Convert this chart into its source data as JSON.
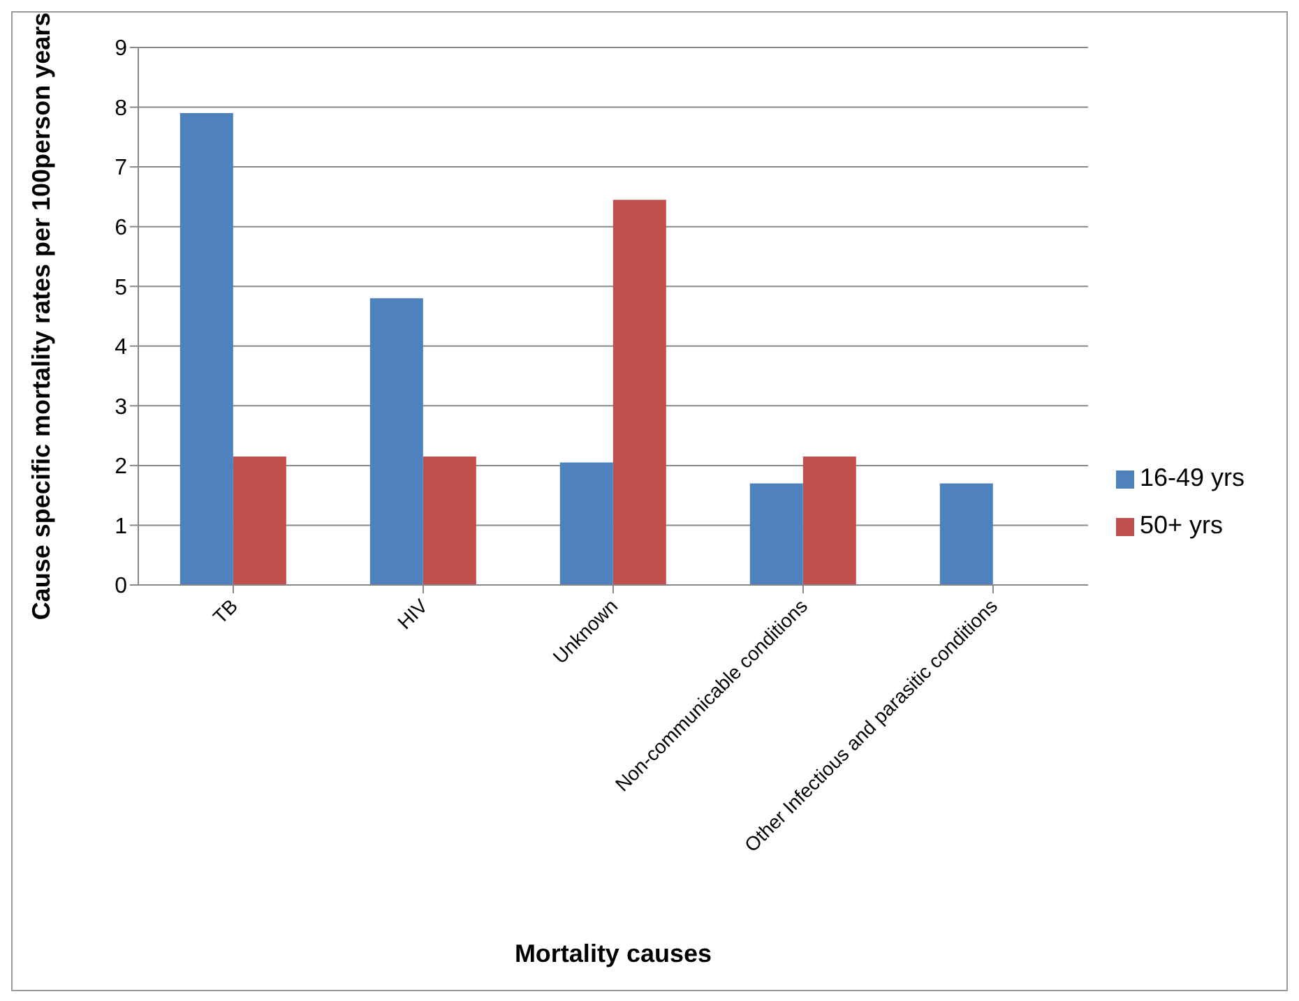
{
  "chart_data": {
    "type": "bar",
    "xlabel": "Mortality causes",
    "ylabel": "Cause specific mortality rates per 100person years",
    "categories": [
      "TB",
      "HIV",
      "Unknown",
      "Non-communicable conditions",
      "Other Infectious and parasitic conditions"
    ],
    "series": [
      {
        "name": "16-49 yrs",
        "color": "#4f81bd",
        "values": [
          7.9,
          4.8,
          2.05,
          1.7,
          1.7
        ]
      },
      {
        "name": "50+ yrs",
        "color": "#c0504d",
        "values": [
          2.15,
          2.15,
          6.45,
          2.15,
          0
        ]
      }
    ],
    "ylim": [
      0,
      9
    ],
    "yticks": [
      0,
      1,
      2,
      3,
      4,
      5,
      6,
      7,
      8,
      9
    ],
    "grid": "y",
    "legend": "right"
  }
}
